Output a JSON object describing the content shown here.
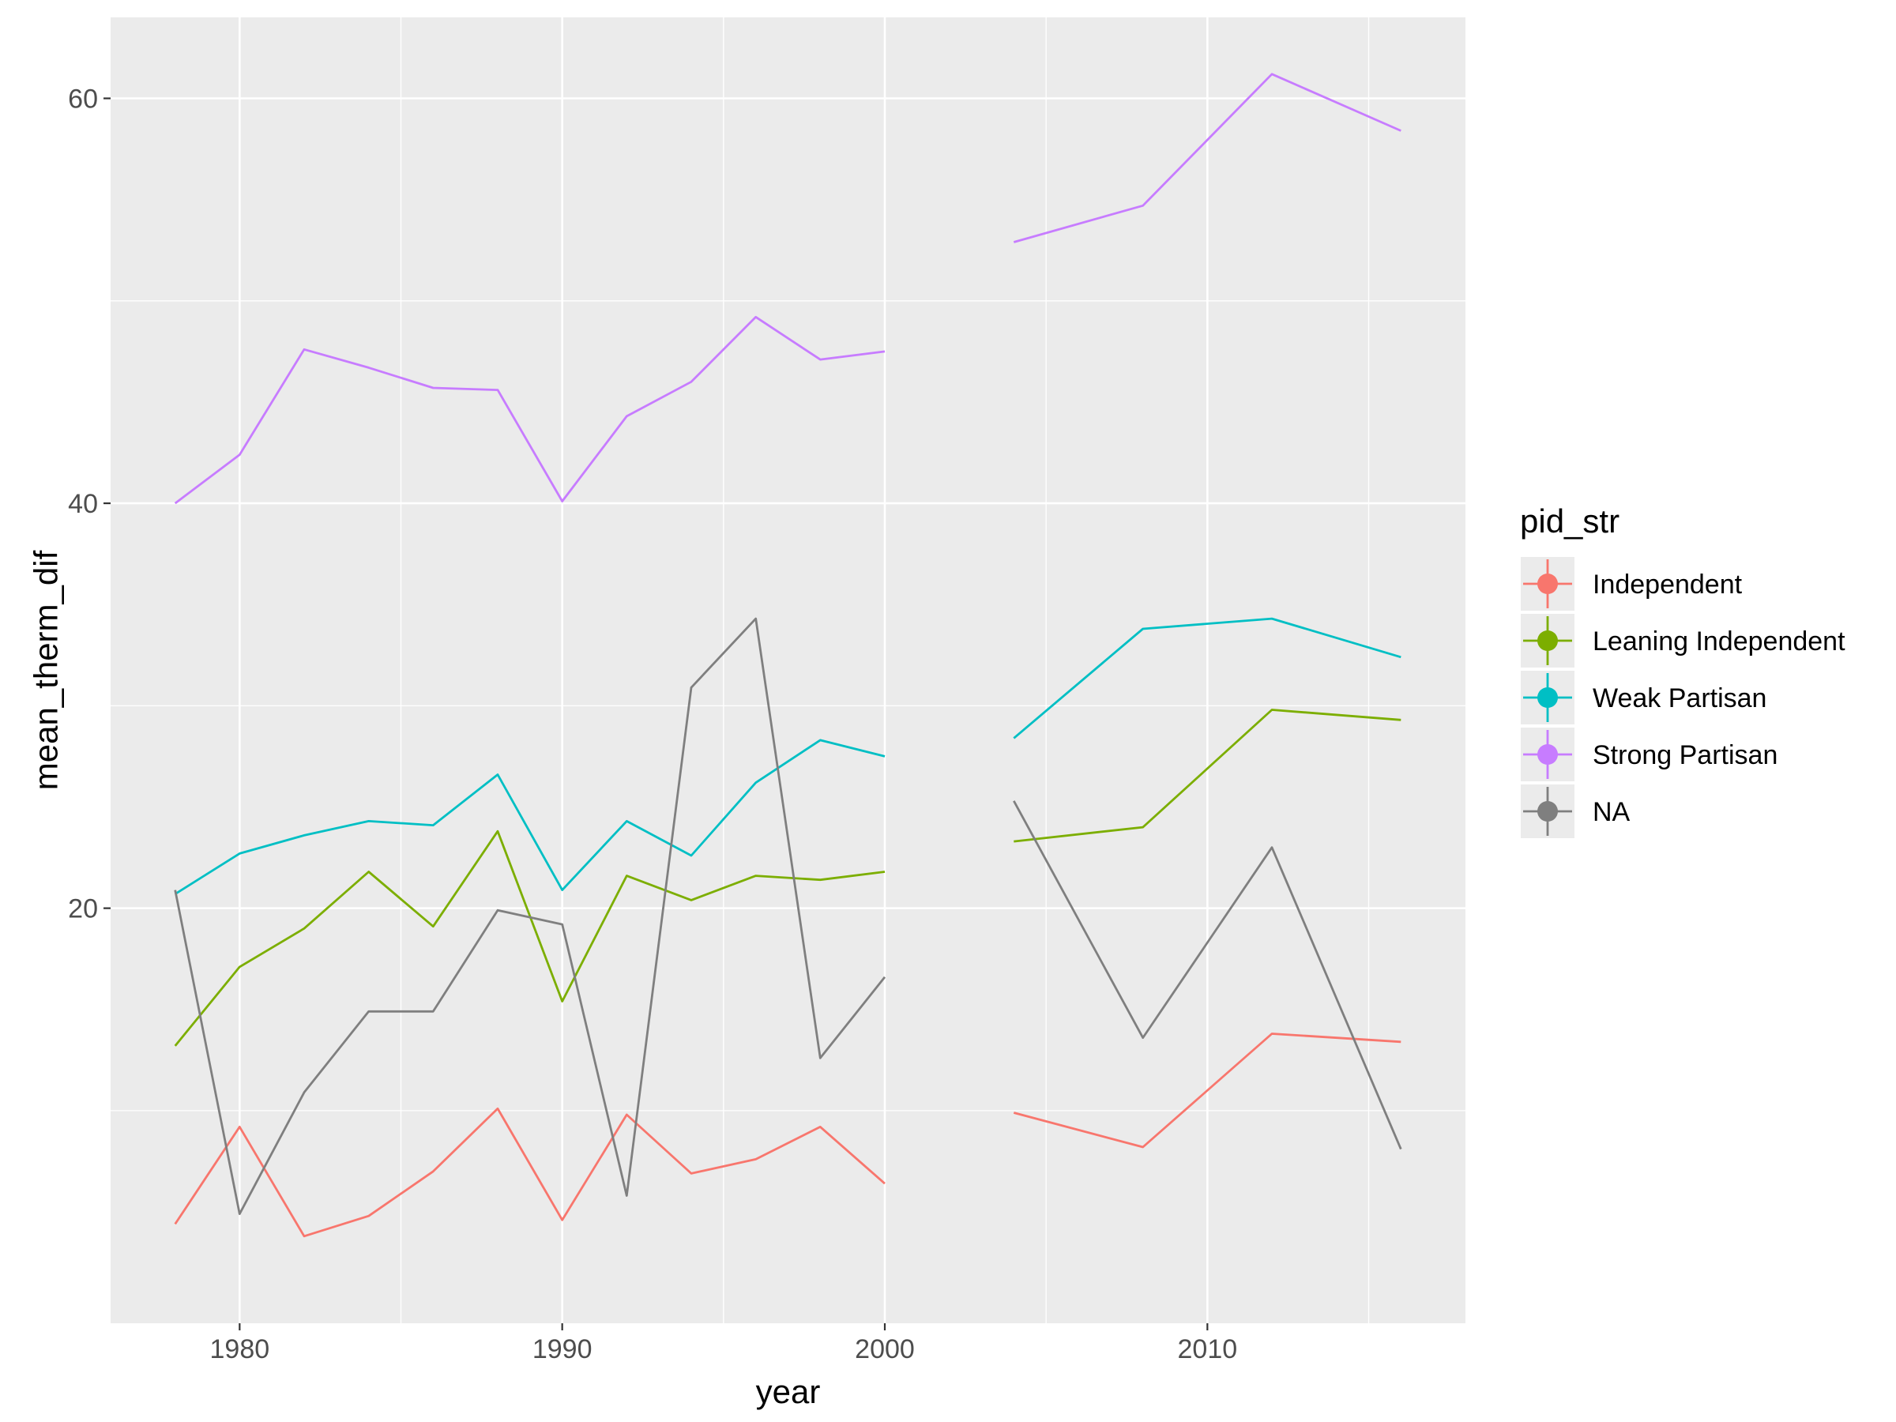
{
  "chart_data": {
    "type": "line",
    "xlabel": "year",
    "ylabel": "mean_therm_dif",
    "xlim": [
      1976,
      2018
    ],
    "ylim": [
      -0.5,
      64
    ],
    "x_ticks": [
      1980,
      1990,
      2000,
      2010
    ],
    "x_minor_ticks": [
      1985,
      1995,
      2005,
      2015
    ],
    "y_ticks": [
      20,
      40,
      60
    ],
    "y_minor_ticks": [
      10,
      30,
      50
    ],
    "x_tick_labels": [
      "1980",
      "1990",
      "2000",
      "2010"
    ],
    "y_tick_labels": [
      "20",
      "40",
      "60"
    ],
    "grid": true,
    "legend": {
      "title": "pid_str",
      "placement": "right",
      "entries": [
        "Independent",
        "Leaning Independent",
        "Weak Partisan",
        "Strong Partisan",
        "NA"
      ]
    },
    "x": [
      1978,
      1980,
      1982,
      1984,
      1986,
      1988,
      1990,
      1992,
      1994,
      1996,
      1998,
      2000,
      2004,
      2008,
      2012,
      2016
    ],
    "series": [
      {
        "name": "Independent",
        "color": "#F8766D",
        "values": [
          4.4,
          9.2,
          3.8,
          4.8,
          7.0,
          10.1,
          4.6,
          9.8,
          6.9,
          7.6,
          9.2,
          6.4,
          9.9,
          8.2,
          13.8,
          13.4
        ]
      },
      {
        "name": "Leaning Independent",
        "color": "#7CAE00",
        "values": [
          13.2,
          17.1,
          19.0,
          21.8,
          19.1,
          23.8,
          15.4,
          21.6,
          20.4,
          21.6,
          21.4,
          21.8,
          23.3,
          24.0,
          29.8,
          29.3
        ]
      },
      {
        "name": "Weak Partisan",
        "color": "#00BFC4",
        "values": [
          20.7,
          22.7,
          23.6,
          24.3,
          24.1,
          26.6,
          20.9,
          24.3,
          22.6,
          26.2,
          28.3,
          27.5,
          28.4,
          33.8,
          34.3,
          32.4
        ]
      },
      {
        "name": "Strong Partisan",
        "color": "#C77CFF",
        "values": [
          40.0,
          42.4,
          47.6,
          46.7,
          45.7,
          45.6,
          40.1,
          44.3,
          46.0,
          49.2,
          47.1,
          47.5,
          52.9,
          54.7,
          61.2,
          58.4
        ]
      },
      {
        "name": "NA",
        "color": "#7F7F7F",
        "values": [
          20.9,
          4.9,
          10.9,
          14.9,
          14.9,
          19.9,
          19.2,
          5.8,
          30.9,
          34.3,
          12.6,
          16.6,
          25.3,
          13.6,
          23.0,
          8.1
        ]
      }
    ],
    "gaps_after_x": [
      2000
    ]
  }
}
